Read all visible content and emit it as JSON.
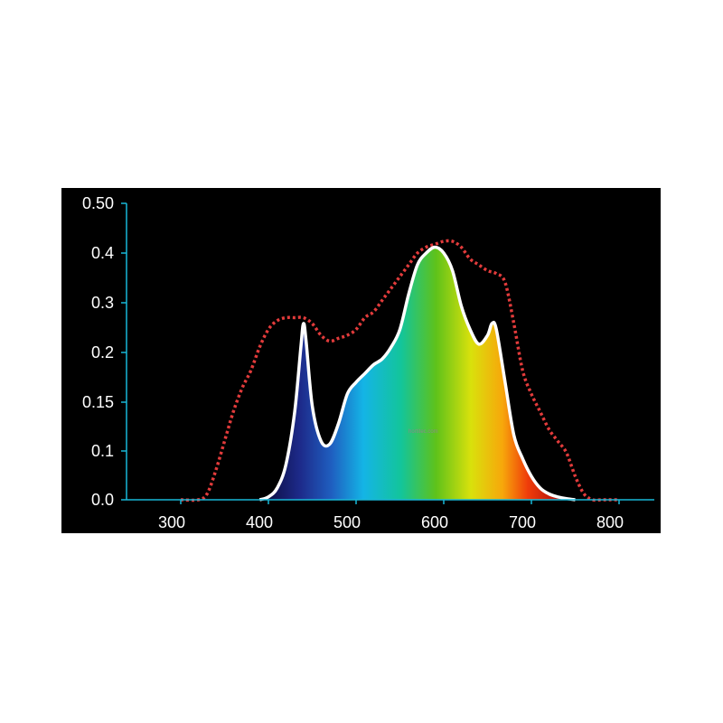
{
  "chart_data": {
    "type": "area",
    "background_color": "#000000",
    "axis_color": "#19b8d8",
    "x_ticks": [
      "300",
      "400",
      "500",
      "600",
      "700",
      "800"
    ],
    "y_ticks": [
      "0.0",
      "0.1",
      "0.15",
      "0.2",
      "0.3",
      "0.4",
      "0.50"
    ],
    "xlim": [
      250,
      840
    ],
    "ylim": [
      0,
      0.5
    ],
    "grid": false,
    "watermark": "hortitec.com",
    "series": [
      {
        "style": "white outline, rainbow spectrum fill",
        "color": "#ffffff",
        "x": [
          390,
          400,
          410,
          420,
          430,
          437,
          440,
          443,
          450,
          460,
          470,
          480,
          490,
          500,
          510,
          520,
          530,
          540,
          550,
          560,
          570,
          580,
          590,
          600,
          610,
          620,
          630,
          640,
          650,
          655,
          660,
          670,
          680,
          690,
          700,
          710,
          720,
          730,
          740,
          750
        ],
        "y": [
          0.0,
          0.005,
          0.02,
          0.06,
          0.15,
          0.26,
          0.3,
          0.27,
          0.16,
          0.1,
          0.095,
          0.13,
          0.18,
          0.2,
          0.215,
          0.23,
          0.24,
          0.26,
          0.29,
          0.35,
          0.4,
          0.42,
          0.43,
          0.42,
          0.39,
          0.33,
          0.29,
          0.265,
          0.28,
          0.3,
          0.29,
          0.2,
          0.11,
          0.07,
          0.04,
          0.02,
          0.01,
          0.005,
          0.002,
          0.0
        ]
      },
      {
        "style": "red dotted",
        "color": "#e23b3b",
        "x": [
          300,
          320,
          330,
          340,
          350,
          360,
          370,
          380,
          390,
          400,
          410,
          420,
          430,
          440,
          450,
          460,
          470,
          480,
          490,
          500,
          510,
          520,
          530,
          540,
          550,
          560,
          570,
          580,
          590,
          600,
          610,
          620,
          630,
          640,
          650,
          660,
          670,
          680,
          690,
          700,
          710,
          720,
          730,
          740,
          750,
          760,
          770,
          780,
          790,
          800
        ],
        "y": [
          0.0,
          0.0,
          0.01,
          0.05,
          0.1,
          0.15,
          0.19,
          0.22,
          0.26,
          0.29,
          0.305,
          0.31,
          0.31,
          0.31,
          0.3,
          0.28,
          0.27,
          0.275,
          0.28,
          0.29,
          0.31,
          0.32,
          0.34,
          0.36,
          0.38,
          0.4,
          0.42,
          0.43,
          0.435,
          0.44,
          0.44,
          0.43,
          0.41,
          0.4,
          0.39,
          0.385,
          0.37,
          0.3,
          0.22,
          0.18,
          0.15,
          0.12,
          0.1,
          0.08,
          0.04,
          0.01,
          0.0,
          0.0,
          0.0,
          0.0
        ]
      }
    ]
  }
}
